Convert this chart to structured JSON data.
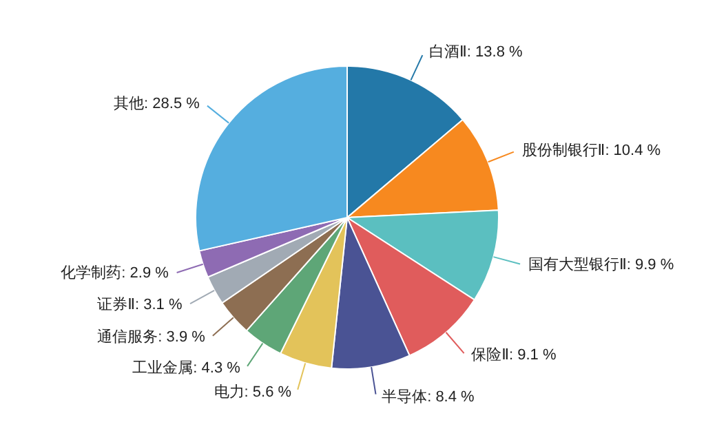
{
  "chart_data": {
    "type": "pie",
    "categories": [
      "白酒Ⅱ",
      "股份制银行Ⅱ",
      "国有大型银行Ⅱ",
      "保险Ⅱ",
      "半导体",
      "电力",
      "工业金属",
      "通信服务",
      "证券Ⅱ",
      "化学制药",
      "其他"
    ],
    "values": [
      13.8,
      10.4,
      9.9,
      9.1,
      8.4,
      5.6,
      4.3,
      3.9,
      3.1,
      2.9,
      28.5
    ],
    "value_labels": [
      "13.8 %",
      "10.4 %",
      "9.9 %",
      "9.1 %",
      "8.4 %",
      "5.6 %",
      "4.3 %",
      "3.9 %",
      "3.1 %",
      "2.9 %",
      "28.5 %"
    ],
    "colors": [
      "#2378a8",
      "#f7891f",
      "#5bbfc0",
      "#e05c5c",
      "#4a5394",
      "#e3c35a",
      "#5ea677",
      "#8d6e52",
      "#a1aab4",
      "#8e6bb3",
      "#55aedf"
    ],
    "legend": false
  }
}
